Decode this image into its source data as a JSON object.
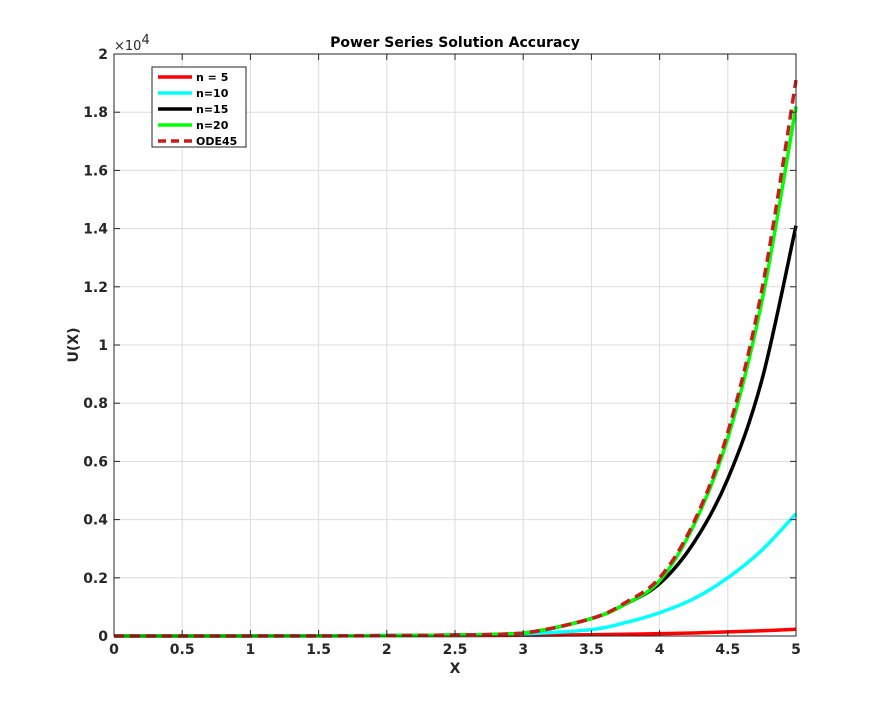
{
  "chart_data": {
    "type": "line",
    "title": "Power Series Solution Accuracy",
    "xlabel": "X",
    "ylabel": "U(X)",
    "xlim": [
      0,
      5
    ],
    "ylim": [
      0,
      2
    ],
    "y_exponent_base": "×10",
    "y_exponent_power": "4",
    "x_ticks": [
      0,
      0.5,
      1,
      1.5,
      2,
      2.5,
      3,
      3.5,
      4,
      4.5,
      5
    ],
    "x_tick_labels": [
      "0",
      "0.5",
      "1",
      "1.5",
      "2",
      "2.5",
      "3",
      "3.5",
      "4",
      "4.5",
      "5"
    ],
    "y_ticks": [
      0,
      0.2,
      0.4,
      0.6,
      0.8,
      1,
      1.2,
      1.4,
      1.6,
      1.8,
      2
    ],
    "y_tick_labels": [
      "0",
      "0.2",
      "0.4",
      "0.6",
      "0.8",
      "1",
      "1.2",
      "1.4",
      "1.6",
      "1.8",
      "2"
    ],
    "grid": true,
    "legend_position": "top-left",
    "x": [
      0,
      0.5,
      1,
      1.5,
      2,
      2.5,
      3,
      3.5,
      3.75,
      4,
      4.25,
      4.5,
      4.75,
      5
    ],
    "series": [
      {
        "name": "n = 5",
        "color": "#ff0000",
        "dash": "solid",
        "values": [
          0,
          0.0001,
          0.0002,
          0.0004,
          0.0008,
          0.0014,
          0.0025,
          0.0045,
          0.006,
          0.008,
          0.0105,
          0.014,
          0.018,
          0.023
        ]
      },
      {
        "name": "n=10",
        "color": "#00ffff",
        "dash": "solid",
        "values": [
          0,
          0.0001,
          0.0002,
          0.0005,
          0.0012,
          0.003,
          0.0073,
          0.022,
          0.046,
          0.08,
          0.128,
          0.2,
          0.295,
          0.42
        ]
      },
      {
        "name": "n=15",
        "color": "#000000",
        "dash": "solid",
        "values": [
          0,
          0.0001,
          0.0002,
          0.0005,
          0.0013,
          0.0035,
          0.01,
          0.06,
          0.11,
          0.18,
          0.32,
          0.54,
          0.88,
          1.41
        ]
      },
      {
        "name": "n=20",
        "color": "#00ff00",
        "dash": "solid",
        "values": [
          0,
          0.0001,
          0.0002,
          0.0005,
          0.0013,
          0.0035,
          0.01,
          0.06,
          0.11,
          0.19,
          0.38,
          0.68,
          1.15,
          1.82
        ]
      },
      {
        "name": "ODE45",
        "color": "#cc1a1a",
        "dash": "dashed",
        "values": [
          0,
          0.0001,
          0.0002,
          0.0005,
          0.0013,
          0.0035,
          0.01,
          0.06,
          0.115,
          0.2,
          0.39,
          0.7,
          1.19,
          1.91
        ]
      }
    ]
  }
}
